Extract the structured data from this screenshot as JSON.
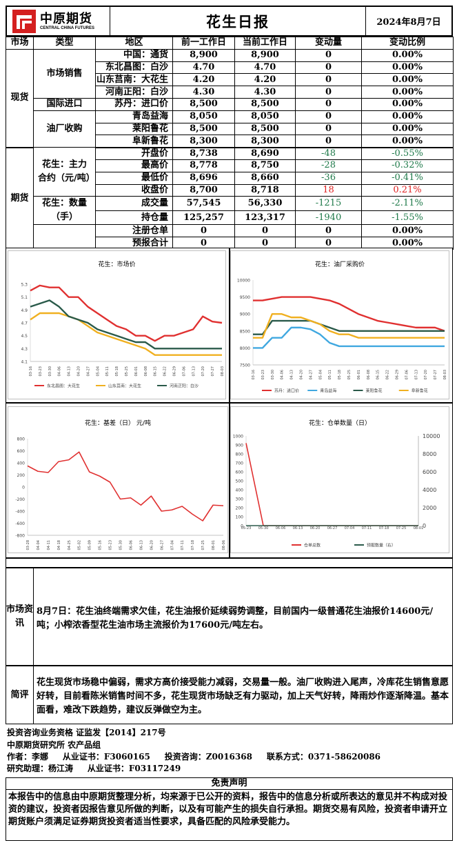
{
  "header": {
    "logo_cn": "中原期货",
    "logo_en": "CENTRAL CHINA FUTURES",
    "title": "花生日报",
    "date": "2024年8月7日"
  },
  "table": {
    "headers": [
      "市场",
      "类型",
      "地区",
      "前一工作日",
      "当前工作日",
      "变动量",
      "变动比例"
    ],
    "spot_label": "现货",
    "futures_label": "期货",
    "groups": {
      "sales": "市场销售",
      "import": "国际进口",
      "mill": "油厂收购",
      "contract": "花生：主力合约（元/吨）",
      "quantity": "花生：数量（手）"
    },
    "rows": [
      {
        "region": "中国：通货",
        "prev": "8,900",
        "curr": "8,900",
        "chg": "0",
        "pct": "0.00%",
        "tone": ""
      },
      {
        "region": "东北昌图：白沙",
        "prev": "4.70",
        "curr": "4.70",
        "chg": "0",
        "pct": "0.00%",
        "tone": ""
      },
      {
        "region": "山东莒南：大花生",
        "prev": "4.20",
        "curr": "4.20",
        "chg": "0",
        "pct": "0.00%",
        "tone": ""
      },
      {
        "region": "河南正阳：白沙",
        "prev": "4.30",
        "curr": "4.30",
        "chg": "0",
        "pct": "0.00%",
        "tone": ""
      },
      {
        "region": "苏丹：进口价",
        "prev": "8,500",
        "curr": "8,500",
        "chg": "0",
        "pct": "0.00%",
        "tone": ""
      },
      {
        "region": "青岛益海",
        "prev": "8,050",
        "curr": "8,050",
        "chg": "0",
        "pct": "0.00%",
        "tone": ""
      },
      {
        "region": "莱阳鲁花",
        "prev": "8,500",
        "curr": "8,500",
        "chg": "0",
        "pct": "0.00%",
        "tone": ""
      },
      {
        "region": "阜新鲁花",
        "prev": "8,300",
        "curr": "8,300",
        "chg": "0",
        "pct": "0.00%",
        "tone": ""
      },
      {
        "region": "开盘价",
        "prev": "8,738",
        "curr": "8,690",
        "chg": "-48",
        "pct": "-0.55%",
        "tone": "green"
      },
      {
        "region": "最高价",
        "prev": "8,778",
        "curr": "8,750",
        "chg": "-28",
        "pct": "-0.32%",
        "tone": "green"
      },
      {
        "region": "最低价",
        "prev": "8,696",
        "curr": "8,660",
        "chg": "-36",
        "pct": "-0.41%",
        "tone": "green"
      },
      {
        "region": "收盘价",
        "prev": "8,700",
        "curr": "8,718",
        "chg": "18",
        "pct": "0.21%",
        "tone": "red"
      },
      {
        "region": "成交量",
        "prev": "57,545",
        "curr": "56,330",
        "chg": "-1215",
        "pct": "-2.11%",
        "tone": "green"
      },
      {
        "region": "持仓量",
        "prev": "125,257",
        "curr": "123,317",
        "chg": "-1940",
        "pct": "-1.55%",
        "tone": "green"
      },
      {
        "region": "注册仓单",
        "prev": "0",
        "curr": "0",
        "chg": "0",
        "pct": "0.00%",
        "tone": ""
      },
      {
        "region": "预报合计",
        "prev": "0",
        "curr": "0",
        "chg": "0",
        "pct": "0.00%",
        "tone": ""
      }
    ]
  },
  "chart_data": [
    {
      "type": "line",
      "title": "花生：市场价",
      "x": [
        "03-16",
        "03-23",
        "03-30",
        "04-06",
        "04-13",
        "04-20",
        "04-27",
        "05-04",
        "05-11",
        "05-18",
        "05-25",
        "06-01",
        "06-08",
        "06-15",
        "06-22",
        "06-29",
        "07-06",
        "07-13",
        "07-20",
        "07-27",
        "08-03"
      ],
      "yticks": [
        "4.1",
        "4.3",
        "4.5",
        "4.7",
        "4.9",
        "5.1",
        "5.3"
      ],
      "ylim": [
        4.1,
        5.3
      ],
      "series": [
        {
          "name": "东北昌图：大花生",
          "color": "#e03030",
          "values": [
            5.2,
            5.28,
            5.25,
            5.25,
            5.1,
            5.1,
            4.95,
            4.85,
            4.75,
            4.65,
            4.6,
            4.5,
            4.5,
            4.42,
            4.5,
            4.5,
            4.55,
            4.6,
            4.8,
            4.72,
            4.7
          ]
        },
        {
          "name": "山东莒南：大花生",
          "color": "#f0b020",
          "values": [
            4.75,
            4.85,
            4.85,
            4.85,
            4.8,
            4.75,
            4.65,
            4.55,
            4.5,
            4.45,
            4.4,
            4.35,
            4.3,
            4.2,
            4.2,
            4.2,
            4.2,
            4.2,
            4.2,
            4.2,
            4.2
          ]
        },
        {
          "name": "河南正阳：白沙",
          "color": "#2a5a4a",
          "values": [
            4.95,
            5.0,
            5.05,
            4.95,
            4.8,
            4.75,
            4.7,
            4.6,
            4.55,
            4.5,
            4.45,
            4.4,
            4.4,
            4.3,
            4.3,
            4.3,
            4.3,
            4.3,
            4.3,
            4.3,
            4.3
          ]
        }
      ]
    },
    {
      "type": "line",
      "title": "花生：油厂采购价",
      "x": [
        "03-16",
        "03-23",
        "03-30",
        "04-06",
        "04-13",
        "04-20",
        "04-27",
        "05-04",
        "05-11",
        "05-18",
        "05-25",
        "06-01",
        "06-08",
        "06-15",
        "06-22",
        "06-29",
        "07-06",
        "07-13",
        "07-20",
        "07-27",
        "08-03"
      ],
      "yticks": [
        "7500",
        "8000",
        "8500",
        "9000",
        "9500",
        "10000"
      ],
      "ylim": [
        7500,
        10000
      ],
      "series": [
        {
          "name": "苏丹：进口价",
          "color": "#e03030",
          "values": [
            9400,
            9400,
            9450,
            9500,
            9500,
            9500,
            9500,
            9450,
            9400,
            9300,
            9150,
            9000,
            8900,
            8800,
            8750,
            8700,
            8650,
            8600,
            8600,
            8600,
            8500
          ]
        },
        {
          "name": "青岛益海",
          "color": "#40a8e0",
          "values": [
            8000,
            8000,
            8300,
            8300,
            8600,
            8600,
            8550,
            8400,
            8150,
            8050,
            8050,
            8050,
            8050,
            8050,
            8050,
            8050,
            8050,
            8050,
            8050,
            8050,
            8050
          ]
        },
        {
          "name": "莱阳鲁花",
          "color": "#2a5a4a",
          "values": [
            8400,
            8400,
            8800,
            8800,
            8800,
            8800,
            8800,
            8700,
            8600,
            8500,
            8500,
            8500,
            8500,
            8500,
            8500,
            8500,
            8500,
            8500,
            8500,
            8500,
            8500
          ]
        },
        {
          "name": "阜新鲁花",
          "color": "#f0b020",
          "values": [
            8300,
            8300,
            9000,
            9000,
            8900,
            8900,
            8800,
            8700,
            8500,
            8400,
            8400,
            8300,
            8300,
            8300,
            8300,
            8300,
            8300,
            8300,
            8300,
            8300,
            8300
          ]
        }
      ]
    },
    {
      "type": "line",
      "title": "花生：基差（日） 元/吨",
      "x": [
        "03-28",
        "04-04",
        "04-11",
        "04-18",
        "04-25",
        "05-02",
        "05-09",
        "05-16",
        "05-23",
        "05-30",
        "06-06",
        "06-13",
        "06-20",
        "06-27",
        "07-04",
        "07-11",
        "07-18",
        "07-25",
        "08-01",
        "08-06"
      ],
      "yticks": [
        "-800",
        "-600",
        "-400",
        "-200",
        "0",
        "200",
        "400",
        "600",
        "800"
      ],
      "ylim": [
        -800,
        800
      ],
      "series": [
        {
          "name": "基差",
          "color": "#e03030",
          "values": [
            350,
            260,
            240,
            420,
            450,
            580,
            250,
            180,
            80,
            -200,
            -180,
            -300,
            -150,
            -400,
            -380,
            -320,
            -450,
            -560,
            -300,
            -310
          ]
        }
      ]
    },
    {
      "type": "line",
      "title": "花生：仓单数量（日）",
      "x": [
        "05-23",
        "05-30",
        "06-06",
        "06-13",
        "06-20",
        "06-27",
        "07-04",
        "07-11",
        "07-18",
        "07-25",
        "08-01"
      ],
      "yticks": [
        "0",
        "100",
        "200",
        "300",
        "400",
        "500",
        "600",
        "700",
        "800",
        "900",
        "1000"
      ],
      "yticks_right": [
        "0",
        "2000",
        "4000",
        "6000",
        "8000",
        "10000"
      ],
      "ylim": [
        0,
        1000
      ],
      "ylim_right": [
        0,
        10000
      ],
      "series": [
        {
          "name": "仓单总数",
          "color": "#e03030",
          "values": [
            920,
            0,
            0,
            0,
            0,
            0,
            0,
            0,
            0,
            0,
            0
          ]
        },
        {
          "name": "预报数量（右）",
          "color": "#2a5a4a",
          "values": [
            0,
            0,
            0,
            0,
            0,
            0,
            0,
            0,
            0,
            0,
            0
          ]
        }
      ]
    }
  ],
  "sections": {
    "market_label": "市场资讯",
    "market_text": "8月7日：花生油终端需求欠佳，花生油报价延续弱势调整，目前国内一级普通花生油报价14600元/吨；小榨浓香型花生油市场主流报价为17600元/吨左右。",
    "comment_label": "简评",
    "comment_text": "花生现货市场稳中偏弱，需求方高价接受能力减弱，交易量一般。油厂收购进入尾声，冷库花生销售意愿好转，目前看陈米销售时间不多，花生现货市场缺乏有力驱动，加上天气好转，降雨炒作逐渐降温。基本面看，难改下跌趋势，建议反弹做空为主。"
  },
  "info": {
    "line1": "投资咨询业务资格   证监发【2014】217号",
    "line2": "中原期货研究所    农产品组",
    "line3": "作者：李娜     从业证书：F3060165     投资咨询：Z0016368     联系方式：0371-58620086",
    "line4": "研究助理：杨江涛     从业证书：F03117249"
  },
  "disclaimer": {
    "title": "免责声明",
    "text": "本报告中的信息由中原期货整理分析，均来源于已公开的资料，报告中的信息分析或所表达的意见并不构成对投资的建议，投资者因报告意见所做的判断，以及有可能产生的损失自行承担。期货交易有风险，投资者申请开立期货账户须满足证券期货投资者适当性要求，具备匹配的风险承受能力。"
  }
}
